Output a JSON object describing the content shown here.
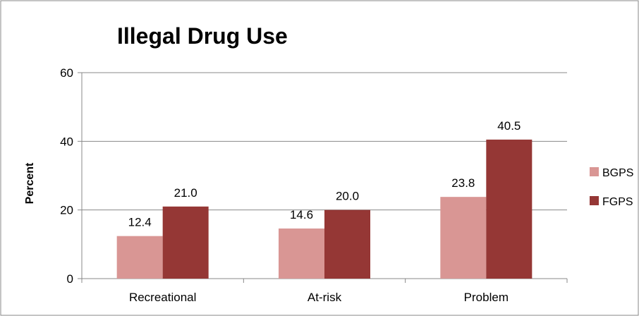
{
  "chart_data": {
    "type": "bar",
    "title": "Illegal Drug Use",
    "ylabel": "Percent",
    "xlabel": "",
    "categories": [
      "Recreational",
      "At-risk",
      "Problem"
    ],
    "series": [
      {
        "name": "BGPS",
        "values": [
          12.4,
          14.6,
          23.8
        ],
        "labels": [
          "12.4",
          "14.6",
          "23.8"
        ],
        "color": "#D99694"
      },
      {
        "name": "FGPS",
        "values": [
          21.0,
          20.0,
          40.5
        ],
        "labels": [
          "21.0",
          "20.0",
          "40.5"
        ],
        "color": "#953735"
      }
    ],
    "ylim": [
      0,
      60
    ],
    "yticks": [
      0,
      20,
      40,
      60
    ],
    "grid": true,
    "legend": "right"
  }
}
